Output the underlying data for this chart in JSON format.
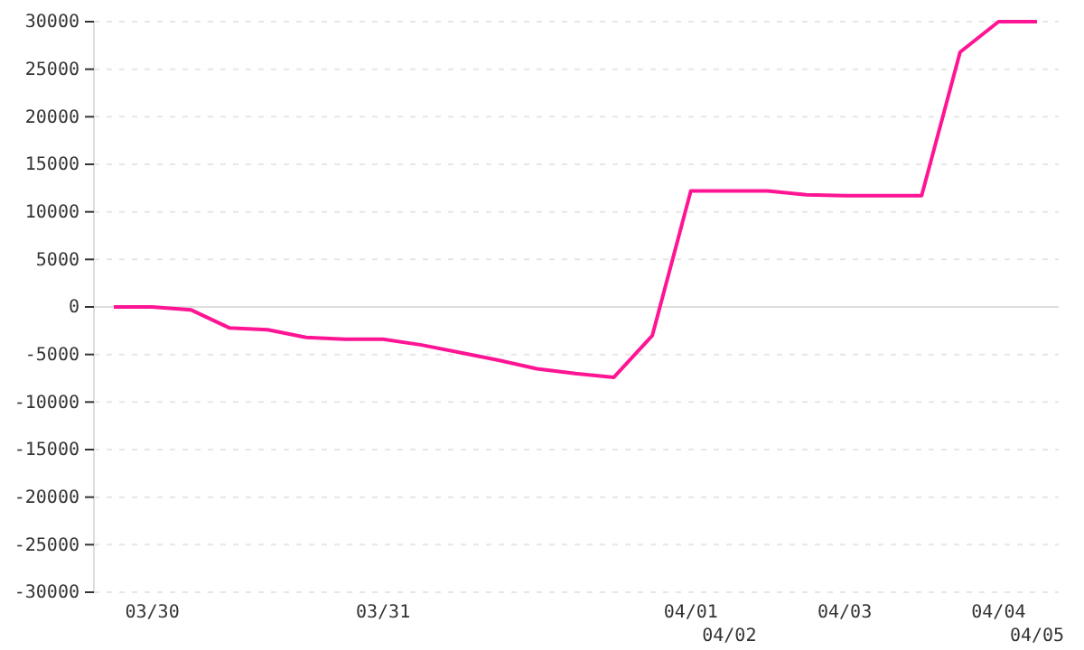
{
  "chart_data": {
    "type": "line",
    "categories": [
      null,
      "03/30",
      null,
      null,
      null,
      null,
      null,
      "03/31",
      null,
      null,
      null,
      null,
      null,
      null,
      null,
      "04/01",
      "04/02",
      null,
      null,
      "04/03",
      null,
      null,
      null,
      "04/04",
      "04/05"
    ],
    "series": [
      {
        "color": "#ff1493",
        "values": [
          0,
          0,
          -300,
          -2200,
          -2400,
          -3200,
          -3400,
          -3400,
          -4000,
          -4800,
          -5600,
          -6500,
          -7000,
          -7400,
          -3000,
          12200,
          12200,
          12200,
          11800,
          11700,
          11700,
          11700,
          26800,
          30000,
          30000
        ]
      }
    ],
    "ylim": [
      -30000,
      30000
    ],
    "yticks": [
      -30000,
      -25000,
      -20000,
      -15000,
      -10000,
      -5000,
      0,
      5000,
      10000,
      15000,
      20000,
      25000,
      30000
    ],
    "grid": "y",
    "ref_lines": [
      {
        "axis": "y",
        "value": 0,
        "color": "#dddddd"
      }
    ]
  }
}
